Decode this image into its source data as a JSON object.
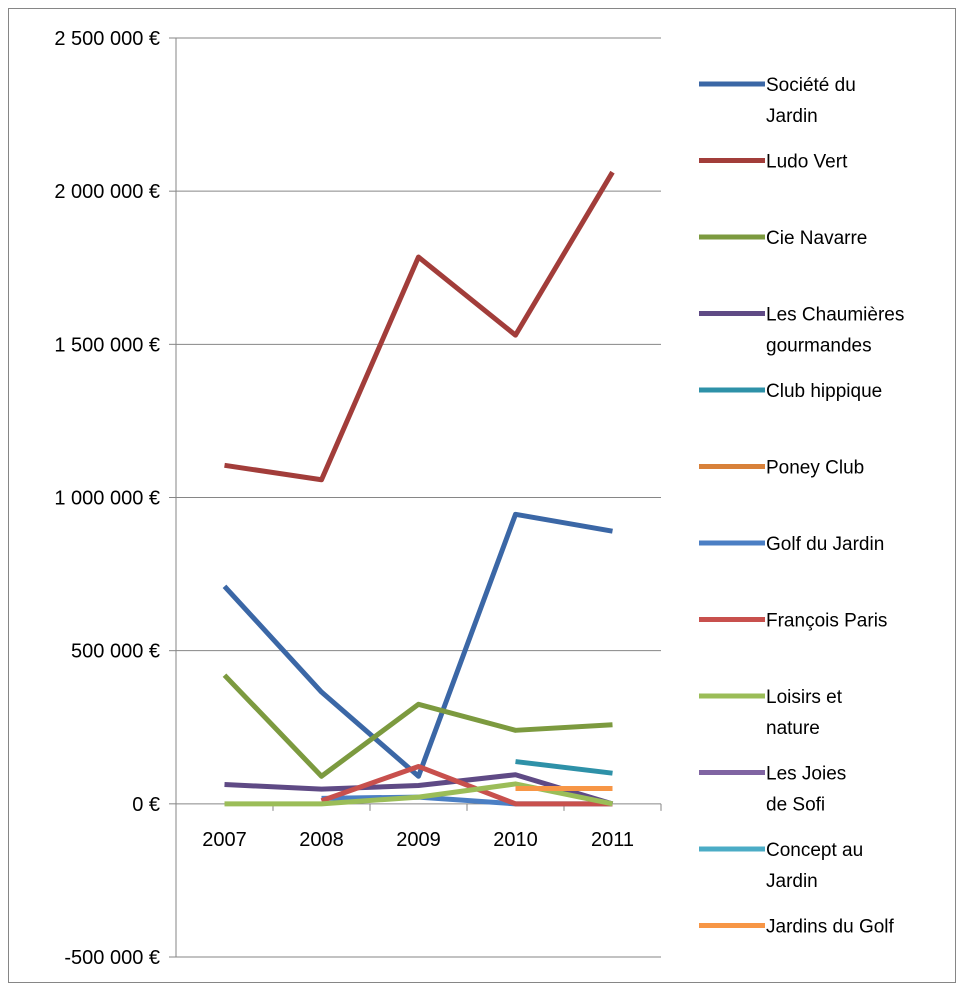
{
  "chart_data": {
    "type": "line",
    "title": "",
    "xlabel": "",
    "ylabel": "",
    "categories": [
      "2007",
      "2008",
      "2009",
      "2010",
      "2011"
    ],
    "ylim": [
      -500000,
      2500000
    ],
    "y_ticks": [
      {
        "value": 2500000,
        "label": "2 500 000 €"
      },
      {
        "value": 2000000,
        "label": "2 000 000 €"
      },
      {
        "value": 1500000,
        "label": "1 500 000 €"
      },
      {
        "value": 1000000,
        "label": "1 000 000 €"
      },
      {
        "value": 500000,
        "label": "500 000 €"
      },
      {
        "value": 0,
        "label": "0 €"
      },
      {
        "value": -500000,
        "label": "-500 000 €"
      }
    ],
    "grid": true,
    "legend_position": "right",
    "series": [
      {
        "name": "Société du Jardin",
        "color": "#3B67A6",
        "values": [
          710000,
          365000,
          90000,
          945000,
          890000
        ]
      },
      {
        "name": "Ludo Vert",
        "color": "#A23D3A",
        "values": [
          1105000,
          1058000,
          1785000,
          1530000,
          2062000
        ]
      },
      {
        "name": "Cie Navarre",
        "color": "#7C9A3F",
        "values": [
          420000,
          90000,
          325000,
          240000,
          258000
        ]
      },
      {
        "name": "Les Chaumières gourmandes",
        "color": "#5F4A85",
        "values": [
          63000,
          48000,
          60000,
          95000,
          0
        ]
      },
      {
        "name": "Club hippique",
        "color": "#2E91A8",
        "values": [
          null,
          null,
          null,
          138000,
          100000
        ]
      },
      {
        "name": "Poney Club",
        "color": "#D8813A",
        "values": [
          null,
          null,
          null,
          null,
          null
        ]
      },
      {
        "name": "Golf du Jardin",
        "color": "#4B7FC4",
        "values": [
          null,
          18000,
          22000,
          0,
          0
        ]
      },
      {
        "name": "François Paris",
        "color": "#C8504D",
        "values": [
          null,
          10000,
          122000,
          0,
          0
        ]
      },
      {
        "name": "Loisirs et nature",
        "color": "#9BBD58",
        "values": [
          0,
          0,
          22000,
          65000,
          0
        ]
      },
      {
        "name": "Les Joies de Sofi",
        "color": "#8064A2",
        "values": [
          null,
          null,
          null,
          null,
          null
        ]
      },
      {
        "name": "Concept au Jardin",
        "color": "#4BACC6",
        "values": [
          null,
          null,
          null,
          null,
          null
        ]
      },
      {
        "name": "Jardins du Golf",
        "color": "#F79646",
        "values": [
          null,
          null,
          null,
          50000,
          50000
        ]
      }
    ]
  }
}
